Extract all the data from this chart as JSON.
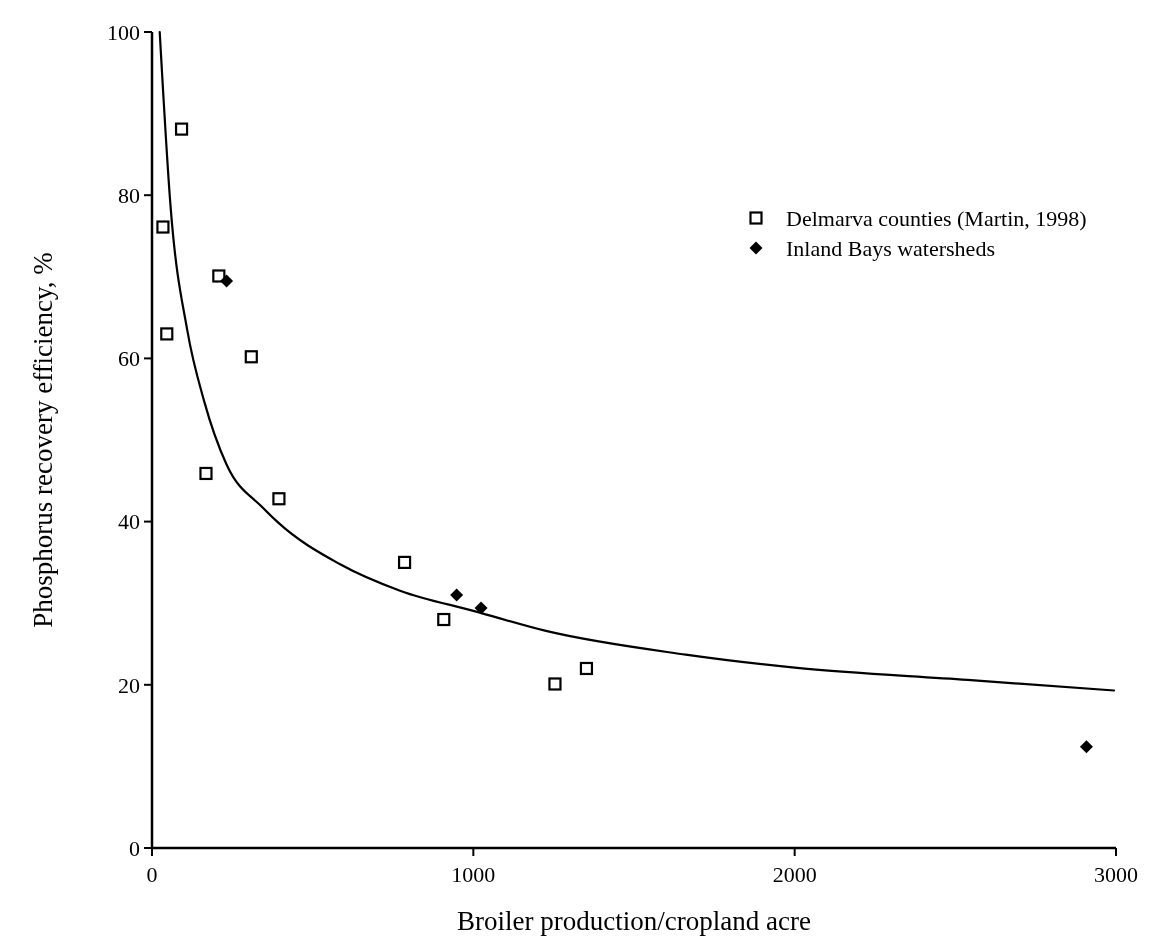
{
  "chart_data": {
    "type": "scatter",
    "xlabel": "Broiler production/cropland acre",
    "ylabel": "Phosphorus recovery efficiency, %",
    "xlim": [
      0,
      3000
    ],
    "xticks": [
      0,
      1000,
      2000,
      3000
    ],
    "ylim": [
      0,
      100
    ],
    "yticks": [
      0,
      20,
      40,
      60,
      80,
      100
    ],
    "grid": false,
    "legend": "top right",
    "series": [
      {
        "name": "Delmarva counties (Martin, 1998)",
        "marker": "square",
        "color": "#000000",
        "x": [
          92,
          34,
          46,
          208,
          309,
          168,
          395,
          786,
          908,
          1254,
          1352
        ],
        "values": [
          88.1,
          76.1,
          63.0,
          70.1,
          60.2,
          45.9,
          42.8,
          35.0,
          28.0,
          20.1,
          22.0
        ]
      },
      {
        "name": "Inland Bays watersheds",
        "marker": "diamond",
        "color": "#000000",
        "x": [
          232,
          948,
          1024,
          2908
        ],
        "values": [
          69.5,
          31.0,
          29.4,
          12.4
        ]
      },
      {
        "type": "line",
        "marker": "none",
        "line_style": "solid",
        "color": "#000000",
        "x": [
          24,
          58,
          110,
          162,
          232,
          345,
          392,
          584,
          774,
          1006,
          1226,
          1661,
          2000,
          2538,
          2994
        ],
        "values": [
          100,
          78.5,
          63.4,
          54.8,
          47,
          41.7,
          39.9,
          34.8,
          31.5,
          29.0,
          26.6,
          23.7,
          22.1,
          20.6,
          19.3
        ]
      }
    ]
  }
}
